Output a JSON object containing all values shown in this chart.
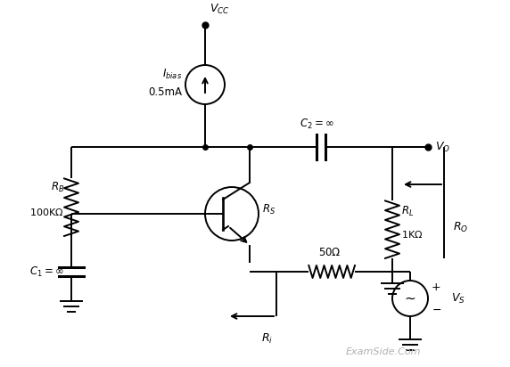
{
  "bg_color": "#ffffff",
  "line_color": "#000000",
  "text_color": "#000000",
  "watermark_color": "#b0b0b0",
  "fig_width": 5.72,
  "fig_height": 4.12,
  "dpi": 100
}
